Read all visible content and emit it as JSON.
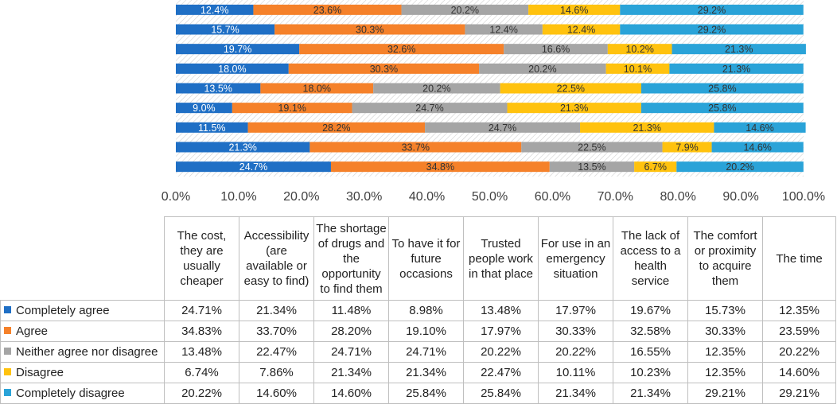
{
  "chart_data": {
    "type": "bar",
    "orientation": "horizontal",
    "stacked": "percent",
    "xlim": [
      0,
      100
    ],
    "x_tick_labels": [
      "0.0%",
      "10.0%",
      "20.0%",
      "30.0%",
      "40.0%",
      "50.0%",
      "60.0%",
      "70.0%",
      "80.0%",
      "90.0%",
      "100.0%"
    ],
    "categories": [
      "The cost, they are usually cheaper",
      "Accessibility (are available or easy to find)",
      "The shortage of drugs and the opportunity to find them",
      "To have it for future occasions",
      "Trusted people work in that place",
      "For use in an emergency situation",
      "The lack of access to a health service",
      "The comfort or proximity to acquire them",
      "The time"
    ],
    "series": [
      {
        "name": "Completely agree",
        "color": "#1f6fc5",
        "values": [
          24.71,
          21.34,
          11.48,
          8.98,
          13.48,
          17.97,
          19.67,
          15.73,
          12.35
        ],
        "bar_labels": [
          "24.7%",
          "21.3%",
          "11.5%",
          "9.0%",
          "13.5%",
          "18.0%",
          "19.7%",
          "15.7%",
          "12.4%"
        ],
        "table_values": [
          "24.71%",
          "21.34%",
          "11.48%",
          "8.98%",
          "13.48%",
          "17.97%",
          "19.67%",
          "15.73%",
          "12.35%"
        ]
      },
      {
        "name": "Agree",
        "color": "#f5812a",
        "values": [
          34.83,
          33.7,
          28.2,
          19.1,
          17.97,
          30.33,
          32.58,
          30.33,
          23.59
        ],
        "bar_labels": [
          "34.8%",
          "33.7%",
          "28.2%",
          "19.1%",
          "18.0%",
          "30.3%",
          "32.6%",
          "30.3%",
          "23.6%"
        ],
        "table_values": [
          "34.83%",
          "33.70%",
          "28.20%",
          "19.10%",
          "17.97%",
          "30.33%",
          "32.58%",
          "30.33%",
          "23.59%"
        ]
      },
      {
        "name": "Neither agree nor disagree",
        "color": "#a5a5a5",
        "values": [
          13.48,
          22.47,
          24.71,
          24.71,
          20.22,
          20.22,
          16.55,
          12.35,
          20.22
        ],
        "bar_labels": [
          "13.5%",
          "22.5%",
          "24.7%",
          "24.7%",
          "20.2%",
          "20.2%",
          "16.6%",
          "12.4%",
          "20.2%"
        ],
        "table_values": [
          "13.48%",
          "22.47%",
          "24.71%",
          "24.71%",
          "20.22%",
          "20.22%",
          "16.55%",
          "12.35%",
          "20.22%"
        ]
      },
      {
        "name": "Disagree",
        "color": "#ffc20e",
        "values": [
          6.74,
          7.86,
          21.34,
          21.34,
          22.47,
          10.11,
          10.23,
          12.35,
          14.6
        ],
        "bar_labels": [
          "6.7%",
          "7.9%",
          "21.3%",
          "21.3%",
          "22.5%",
          "10.1%",
          "10.2%",
          "12.4%",
          "14.6%"
        ],
        "table_values": [
          "6.74%",
          "7.86%",
          "21.34%",
          "21.34%",
          "22.47%",
          "10.11%",
          "10.23%",
          "12.35%",
          "14.60%"
        ]
      },
      {
        "name": "Completely disagree",
        "color": "#2aa3d8",
        "values": [
          20.22,
          14.6,
          14.6,
          25.84,
          25.84,
          21.34,
          21.34,
          29.21,
          29.21
        ],
        "bar_labels": [
          "20.2%",
          "14.6%",
          "14.6%",
          "25.8%",
          "25.8%",
          "21.3%",
          "21.3%",
          "29.2%",
          "29.2%"
        ],
        "table_values": [
          "20.22%",
          "14.60%",
          "14.60%",
          "25.84%",
          "25.84%",
          "21.34%",
          "21.34%",
          "29.21%",
          "29.21%"
        ]
      }
    ],
    "table": {
      "column_headers": [
        [
          "The cost,",
          "they are",
          "usually",
          "cheaper"
        ],
        [
          "Accessibility",
          "(are",
          "available or",
          "easy to find)"
        ],
        [
          "The shortage",
          "of drugs and",
          "the",
          "opportunity",
          "to find them"
        ],
        [
          "To have it for",
          "future",
          "occasions"
        ],
        [
          "Trusted",
          "people work",
          "in that place"
        ],
        [
          "For use in an",
          "emergency",
          "situation"
        ],
        [
          "The lack of",
          "access to a",
          "health",
          "service"
        ],
        [
          "The comfort",
          "or proximity",
          "to acquire",
          "them"
        ],
        [
          "The time"
        ]
      ]
    }
  }
}
